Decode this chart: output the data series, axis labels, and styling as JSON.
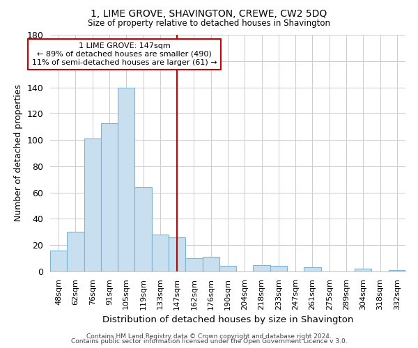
{
  "title": "1, LIME GROVE, SHAVINGTON, CREWE, CW2 5DQ",
  "subtitle": "Size of property relative to detached houses in Shavington",
  "xlabel": "Distribution of detached houses by size in Shavington",
  "ylabel": "Number of detached properties",
  "bin_labels": [
    "48sqm",
    "62sqm",
    "76sqm",
    "91sqm",
    "105sqm",
    "119sqm",
    "133sqm",
    "147sqm",
    "162sqm",
    "176sqm",
    "190sqm",
    "204sqm",
    "218sqm",
    "233sqm",
    "247sqm",
    "261sqm",
    "275sqm",
    "289sqm",
    "304sqm",
    "318sqm",
    "332sqm"
  ],
  "bar_heights": [
    16,
    30,
    101,
    113,
    140,
    64,
    28,
    26,
    10,
    11,
    4,
    0,
    5,
    4,
    0,
    3,
    0,
    0,
    2,
    0,
    1
  ],
  "bar_color": "#c8dff0",
  "bar_edge_color": "#7fb3d3",
  "vline_x_index": 7,
  "vline_color": "#cc0000",
  "ylim": [
    0,
    180
  ],
  "yticks": [
    0,
    20,
    40,
    60,
    80,
    100,
    120,
    140,
    160,
    180
  ],
  "annotation_title": "1 LIME GROVE: 147sqm",
  "annotation_line1": "← 89% of detached houses are smaller (490)",
  "annotation_line2": "11% of semi-detached houses are larger (61) →",
  "annotation_box_color": "#ffffff",
  "annotation_box_edge": "#cc0000",
  "footer_line1": "Contains HM Land Registry data © Crown copyright and database right 2024.",
  "footer_line2": "Contains public sector information licensed under the Open Government Licence v 3.0.",
  "background_color": "#ffffff",
  "grid_color": "#cccccc"
}
